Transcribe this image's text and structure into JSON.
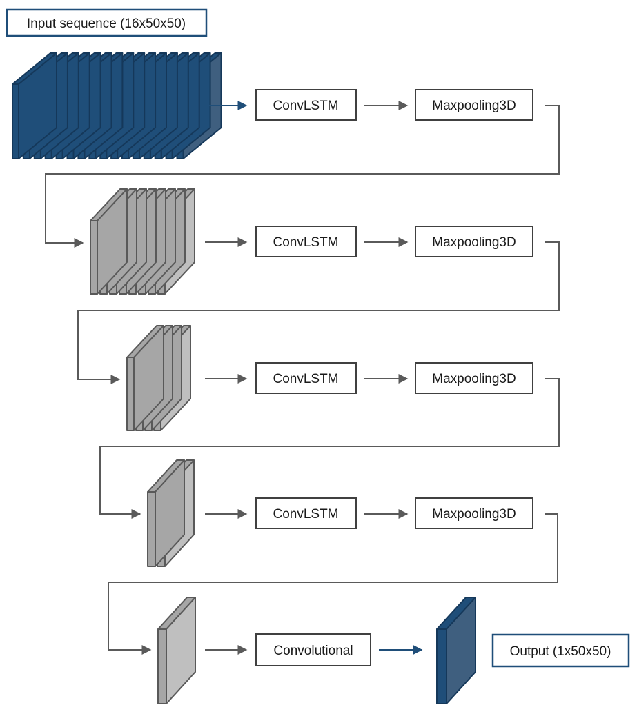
{
  "input_label": "Input sequence (16x50x50)",
  "output_label": "Output (1x50x50)",
  "rows": [
    {
      "block": "ConvLSTM",
      "pool": "Maxpooling3D"
    },
    {
      "block": "ConvLSTM",
      "pool": "Maxpooling3D"
    },
    {
      "block": "ConvLSTM",
      "pool": "Maxpooling3D"
    },
    {
      "block": "ConvLSTM",
      "pool": "Maxpooling3D"
    }
  ],
  "final_block": "Convolutional",
  "stacks": [
    16,
    8,
    4,
    2,
    1
  ],
  "colors": {
    "input_fill": "#1f4e79",
    "input_edge": "#15385a",
    "input_side": "#3f5f7f",
    "gray_fill": "#a6a6a6",
    "gray_edge": "#595959",
    "gray_side": "#bfbfbf",
    "arrow_gray": "#5a5a5a",
    "arrow_blue": "#1f4e79",
    "box_border": "#404040",
    "label_border": "#1f4e79"
  }
}
